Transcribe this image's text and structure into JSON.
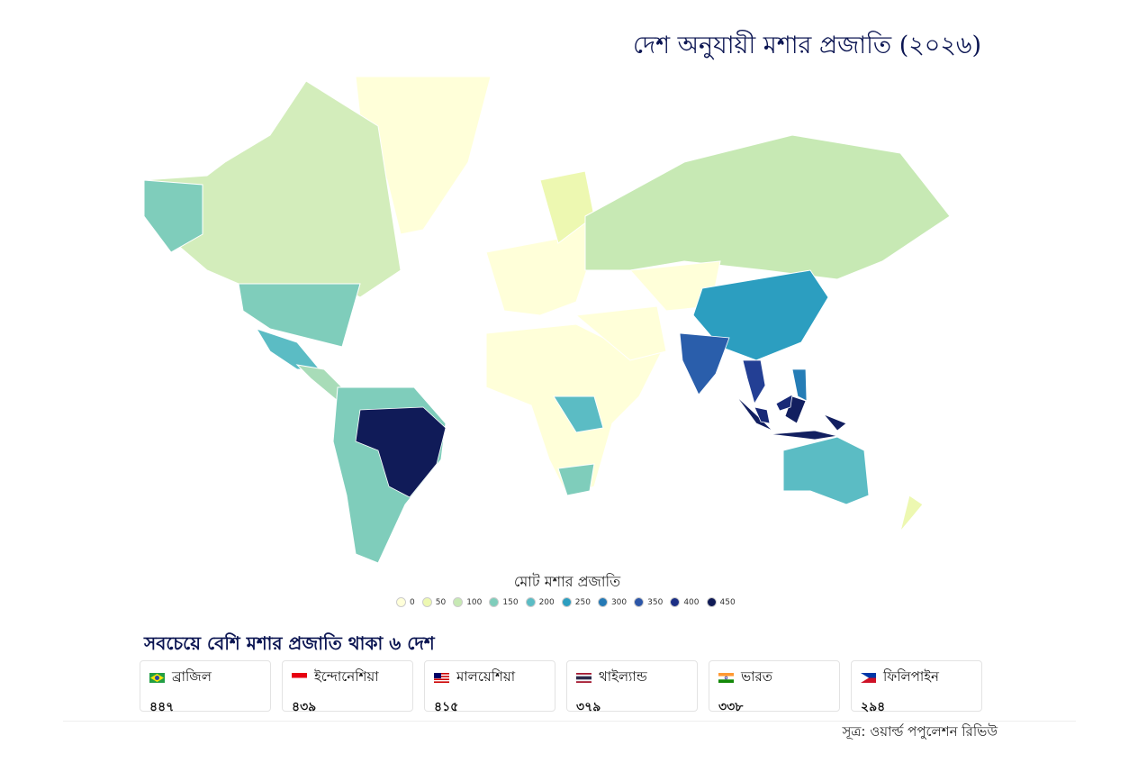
{
  "header": {
    "title": "দেশ অনুযায়ী মশার প্রজাতি (২০২৬)"
  },
  "map": {
    "legend": {
      "title": "মোট মশার প্রজাতি",
      "ticks": [
        0,
        50,
        100,
        150,
        200,
        250,
        300,
        350,
        400,
        450
      ],
      "colors": [
        "#ffffd9",
        "#edf8b1",
        "#c7e9b4",
        "#7fcdbb",
        "#5bbcc4",
        "#2c9ec0",
        "#2479b5",
        "#2c56a8",
        "#1c2f85",
        "#0f1a55"
      ]
    }
  },
  "top": {
    "title": "সবচেয়ে বেশি মশার প্রজাতি থাকা ৬ দেশ",
    "countries": [
      {
        "name": "ব্রাজিল",
        "value": 447,
        "label": "৪৪৭"
      },
      {
        "name": "ইন্দোনেশিয়া",
        "value": 439,
        "label": "৪৩৯"
      },
      {
        "name": "মালয়েশিয়া",
        "value": 415,
        "label": "৪১৫"
      },
      {
        "name": "থাইল্যান্ড",
        "value": 379,
        "label": "৩৭৯"
      },
      {
        "name": "ভারত",
        "value": 338,
        "label": "৩৩৮"
      },
      {
        "name": "ফিলিপাইন",
        "value": 294,
        "label": "২৯৪"
      }
    ]
  },
  "source": "সূত্র: ওয়ার্ল্ড পপুলেশন রিভিউ"
}
